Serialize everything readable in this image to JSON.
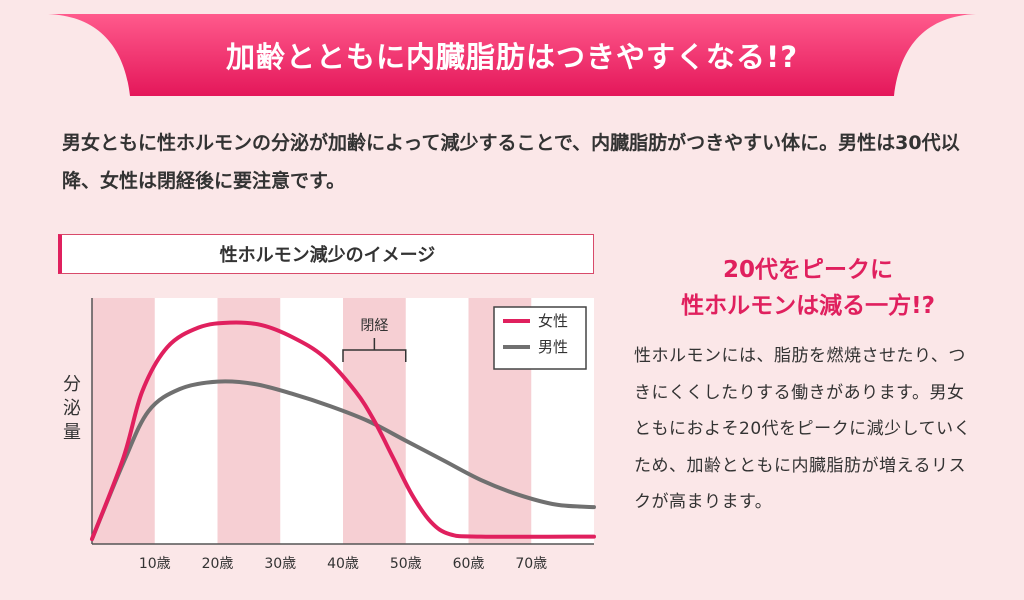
{
  "banner": {
    "title": "加齢とともに内臓脂肪はつきやすくなる!?"
  },
  "intro": {
    "text": "男女ともに性ホルモンの分泌が加齢によって減少することで、内臓脂肪がつきやすい体に。男性は30代以降、女性は閉経後に要注意です。"
  },
  "side": {
    "heading_line1": "20代をピークに",
    "heading_line2": "性ホルモンは減る一方!?",
    "body": "性ホルモンには、脂肪を燃焼させたり、つきにくくしたりする働きがあります。男女ともにおよそ20代をピークに減少していくため、加齢とともに内臓脂肪が増えるリスクが高まります。"
  },
  "colors": {
    "accent": "#e0205e",
    "male": "#707070",
    "band": "#f6cfd3",
    "background": "#fbe7e8"
  },
  "chart_data": {
    "type": "line",
    "title": "性ホルモン減少のイメージ",
    "ylabel": "分泌量",
    "xlabel": "",
    "x_ticks": [
      "10歳",
      "20歳",
      "30歳",
      "40歳",
      "50歳",
      "60歳",
      "70歳"
    ],
    "x_tick_values": [
      10,
      20,
      30,
      40,
      50,
      60,
      70
    ],
    "xlim": [
      0,
      80
    ],
    "ylim": [
      0,
      100
    ],
    "shaded_age_ranges": [
      [
        0,
        10
      ],
      [
        20,
        30
      ],
      [
        40,
        50
      ],
      [
        60,
        70
      ]
    ],
    "annotation": {
      "label": "閉経",
      "range": [
        40,
        50
      ]
    },
    "legend_position": "top-right",
    "series": [
      {
        "name": "女性",
        "color": "#e0205e",
        "points": [
          [
            0,
            2
          ],
          [
            5,
            35
          ],
          [
            8,
            62
          ],
          [
            12,
            80
          ],
          [
            17,
            88
          ],
          [
            22,
            90
          ],
          [
            27,
            89
          ],
          [
            32,
            84
          ],
          [
            37,
            76
          ],
          [
            42,
            62
          ],
          [
            45,
            50
          ],
          [
            48,
            35
          ],
          [
            51,
            20
          ],
          [
            54,
            9
          ],
          [
            57,
            4
          ],
          [
            62,
            3
          ],
          [
            80,
            3
          ]
        ]
      },
      {
        "name": "男性",
        "color": "#707070",
        "points": [
          [
            0,
            2
          ],
          [
            5,
            33
          ],
          [
            9,
            54
          ],
          [
            14,
            63
          ],
          [
            20,
            66
          ],
          [
            26,
            65
          ],
          [
            32,
            61
          ],
          [
            38,
            56
          ],
          [
            44,
            50
          ],
          [
            50,
            42
          ],
          [
            56,
            34
          ],
          [
            62,
            26
          ],
          [
            68,
            20
          ],
          [
            74,
            16
          ],
          [
            80,
            15
          ]
        ]
      }
    ]
  }
}
